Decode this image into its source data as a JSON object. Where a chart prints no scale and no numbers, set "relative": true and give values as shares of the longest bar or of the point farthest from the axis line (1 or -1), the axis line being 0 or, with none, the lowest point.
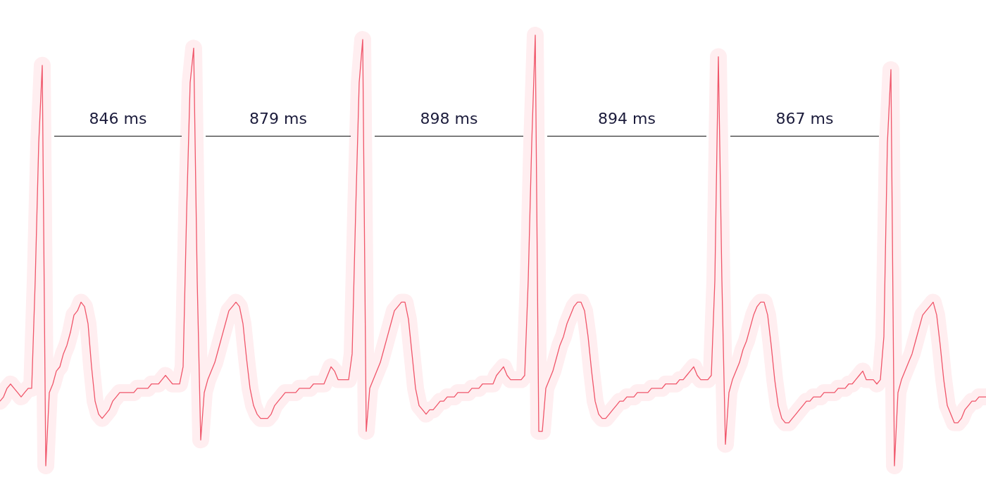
{
  "chart_data": {
    "type": "line",
    "relative": true,
    "categories": [
      null,
      null,
      null,
      null,
      null,
      null,
      null,
      null,
      null,
      null,
      null,
      null,
      null,
      null,
      null,
      null,
      null,
      null,
      null,
      null,
      null,
      null,
      null,
      null,
      null,
      null,
      null,
      null,
      null,
      null,
      null,
      null,
      null,
      null,
      null,
      null,
      null,
      null,
      null,
      null,
      null,
      null,
      null,
      null,
      null,
      null,
      null,
      null,
      null,
      null,
      null,
      null,
      null,
      null,
      null,
      null,
      null,
      null,
      null,
      null,
      null,
      null,
      null,
      null,
      null,
      null,
      null,
      null,
      null,
      null,
      null,
      null,
      null,
      null,
      null,
      null,
      null,
      null,
      null,
      null,
      null,
      null,
      null,
      null,
      null,
      null,
      null,
      null,
      null,
      null,
      null,
      null,
      null,
      null,
      null,
      null,
      null,
      null,
      null,
      null,
      null,
      null,
      null,
      null,
      null,
      null,
      null,
      null,
      null,
      null,
      null,
      null,
      null,
      null,
      null,
      null,
      null,
      null,
      null,
      null,
      null,
      null,
      null,
      null,
      null,
      null,
      null,
      null,
      null,
      null,
      null,
      null,
      null,
      null,
      null,
      null,
      null,
      null,
      null,
      null,
      null,
      null,
      null,
      null,
      null,
      null,
      null,
      null,
      null,
      null,
      null,
      null,
      null,
      null,
      null,
      null,
      null,
      null,
      null,
      null,
      null,
      null,
      null,
      null,
      null,
      null,
      null,
      null,
      null,
      null,
      null,
      null,
      null,
      null,
      null,
      null,
      null,
      null,
      null,
      null,
      null,
      null,
      null,
      null,
      null,
      null,
      null,
      null,
      null,
      null,
      null,
      null,
      null,
      null,
      null,
      null,
      null,
      null,
      null,
      null,
      null,
      null,
      null,
      null,
      null,
      null,
      null,
      null,
      null,
      null,
      null,
      null,
      null,
      null,
      null,
      null,
      null,
      null,
      null,
      null,
      null,
      null,
      null,
      null,
      null,
      null,
      null,
      null,
      null,
      null,
      null,
      null,
      null,
      null,
      null,
      null,
      null,
      null,
      null,
      null,
      null,
      null,
      null,
      null,
      null,
      null,
      null,
      null,
      null,
      null,
      null,
      null,
      null,
      null,
      null,
      null,
      null,
      null,
      null,
      null,
      null,
      null,
      null,
      null,
      null,
      null,
      null,
      null,
      null,
      null,
      null,
      null,
      null,
      null,
      null,
      null,
      null,
      null,
      null,
      null,
      null
    ],
    "series": [
      {
        "color": "#f0566a",
        "values": [
          0.15,
          0.16,
          0.18,
          0.19,
          0.18,
          0.17,
          0.16,
          0.17,
          0.18,
          0.18,
          0.43,
          0.75,
          0.93,
          0,
          0.17,
          0.19,
          0.22,
          0.23,
          0.26,
          0.28,
          0.31,
          0.35,
          0.36,
          0.38,
          0.37,
          0.33,
          0.23,
          0.15,
          0.12,
          0.11,
          0.12,
          0.13,
          0.15,
          0.16,
          0.17,
          0.17,
          0.17,
          0.17,
          0.17,
          0.18,
          0.18,
          0.18,
          0.18,
          0.19,
          0.19,
          0.19,
          0.2,
          0.21,
          0.2,
          0.19,
          0.19,
          0.19,
          0.23,
          0.59,
          0.89,
          0.97,
          0.43,
          0.06,
          0.17,
          0.2,
          0.22,
          0.24,
          0.27,
          0.3,
          0.33,
          0.36,
          0.37,
          0.38,
          0.37,
          0.33,
          0.25,
          0.18,
          0.14,
          0.12,
          0.11,
          0.11,
          0.11,
          0.12,
          0.14,
          0.15,
          0.16,
          0.17,
          0.17,
          0.17,
          0.17,
          0.18,
          0.18,
          0.18,
          0.18,
          0.19,
          0.19,
          0.19,
          0.19,
          0.21,
          0.23,
          0.22,
          0.2,
          0.2,
          0.2,
          0.2,
          0.26,
          0.59,
          0.89,
          0.99,
          0.08,
          0.18,
          0.2,
          0.22,
          0.24,
          0.27,
          0.3,
          0.33,
          0.36,
          0.37,
          0.38,
          0.38,
          0.34,
          0.26,
          0.18,
          0.14,
          0.13,
          0.12,
          0.13,
          0.13,
          0.14,
          0.15,
          0.15,
          0.16,
          0.16,
          0.16,
          0.17,
          0.17,
          0.17,
          0.17,
          0.18,
          0.18,
          0.18,
          0.19,
          0.19,
          0.19,
          0.19,
          0.21,
          0.22,
          0.23,
          0.21,
          0.2,
          0.2,
          0.2,
          0.2,
          0.21,
          0.43,
          0.75,
          1,
          0.08,
          0.08,
          0.18,
          0.2,
          0.22,
          0.25,
          0.28,
          0.3,
          0.33,
          0.35,
          0.37,
          0.38,
          0.38,
          0.36,
          0.3,
          0.22,
          0.15,
          0.12,
          0.11,
          0.11,
          0.12,
          0.13,
          0.14,
          0.15,
          0.15,
          0.16,
          0.16,
          0.16,
          0.17,
          0.17,
          0.17,
          0.17,
          0.18,
          0.18,
          0.18,
          0.18,
          0.19,
          0.19,
          0.19,
          0.19,
          0.2,
          0.2,
          0.21,
          0.22,
          0.23,
          0.21,
          0.2,
          0.2,
          0.2,
          0.21,
          0.43,
          0.95,
          0.43,
          0.05,
          0.17,
          0.2,
          0.22,
          0.24,
          0.27,
          0.29,
          0.32,
          0.35,
          0.37,
          0.38,
          0.38,
          0.35,
          0.28,
          0.2,
          0.14,
          0.11,
          0.1,
          0.1,
          0.11,
          0.12,
          0.13,
          0.14,
          0.15,
          0.15,
          0.16,
          0.16,
          0.16,
          0.17,
          0.17,
          0.17,
          0.17,
          0.18,
          0.18,
          0.18,
          0.19,
          0.19,
          0.2,
          0.21,
          0.22,
          0.2,
          0.2,
          0.2,
          0.19,
          0.2,
          0.3,
          0.75,
          0.92,
          0,
          0.17,
          0.2,
          0.22,
          0.24,
          0.26,
          0.29,
          0.32,
          0.35,
          0.36,
          0.37,
          0.38,
          0.35,
          0.28,
          0.2,
          0.14,
          0.12,
          0.1,
          0.1,
          0.11,
          0.13,
          0.14,
          0.15,
          0.15,
          0.16,
          0.16,
          0.16
        ]
      }
    ],
    "annotations": [
      "846 ms",
      "879 ms",
      "898 ms",
      "894 ms",
      "867 ms"
    ]
  }
}
